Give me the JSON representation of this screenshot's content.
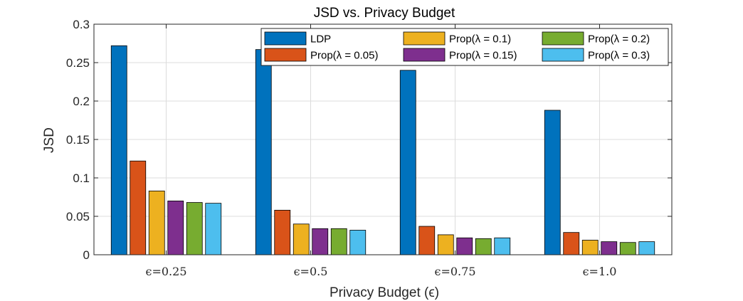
{
  "chart_data": {
    "type": "bar",
    "title": "JSD vs. Privacy Budget",
    "xlabel": "Privacy Budget (ϵ)",
    "ylabel": "JSD",
    "ylim": [
      0,
      0.3
    ],
    "yticks": [
      "0",
      "0.05",
      "0.1",
      "0.15",
      "0.2",
      "0.25",
      "0.3"
    ],
    "categories": [
      "ϵ=0.25",
      "ϵ=0.5",
      "ϵ=0.75",
      "ϵ=1.0"
    ],
    "grid": true,
    "legend_position": "top-right",
    "series": [
      {
        "name": "LDP",
        "color": "#0072BD",
        "values": [
          0.272,
          0.267,
          0.24,
          0.188
        ]
      },
      {
        "name": "Prop(λ = 0.05)",
        "color": "#D95319",
        "values": [
          0.122,
          0.058,
          0.037,
          0.029
        ]
      },
      {
        "name": "Prop(λ = 0.1)",
        "color": "#EDB120",
        "values": [
          0.083,
          0.04,
          0.026,
          0.019
        ]
      },
      {
        "name": "Prop(λ = 0.15)",
        "color": "#7E2F8E",
        "values": [
          0.07,
          0.034,
          0.022,
          0.017
        ]
      },
      {
        "name": "Prop(λ = 0.2)",
        "color": "#77AC30",
        "values": [
          0.068,
          0.034,
          0.021,
          0.016
        ]
      },
      {
        "name": "Prop(λ = 0.3)",
        "color": "#4DBEEE",
        "values": [
          0.067,
          0.032,
          0.022,
          0.017
        ]
      }
    ]
  }
}
